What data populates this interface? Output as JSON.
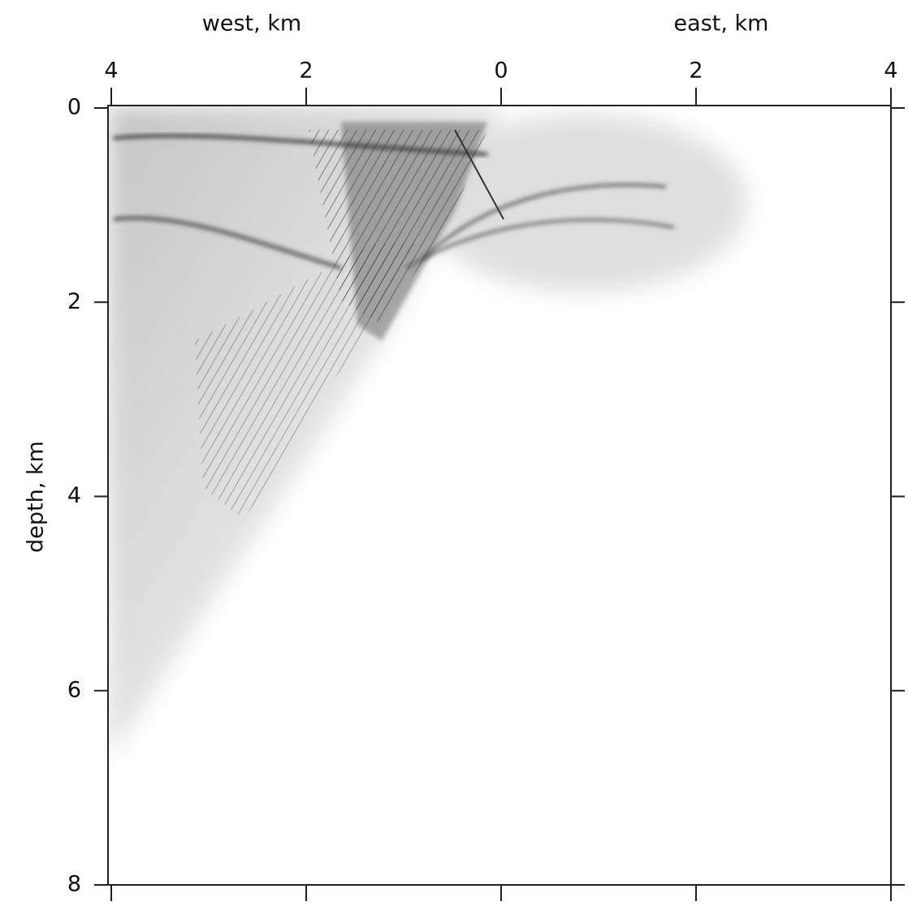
{
  "chart_data": {
    "type": "image",
    "x_label_west": "west, km",
    "x_label_east": "east, km",
    "y_label": "depth, km",
    "xlim": [
      -4,
      4
    ],
    "xticks": [
      {
        "value": -4,
        "label": "4"
      },
      {
        "value": -2,
        "label": "2"
      },
      0,
      2,
      4
    ],
    "ylim": [
      0,
      8
    ],
    "yticks": [
      0,
      2,
      4,
      6,
      8
    ]
  }
}
